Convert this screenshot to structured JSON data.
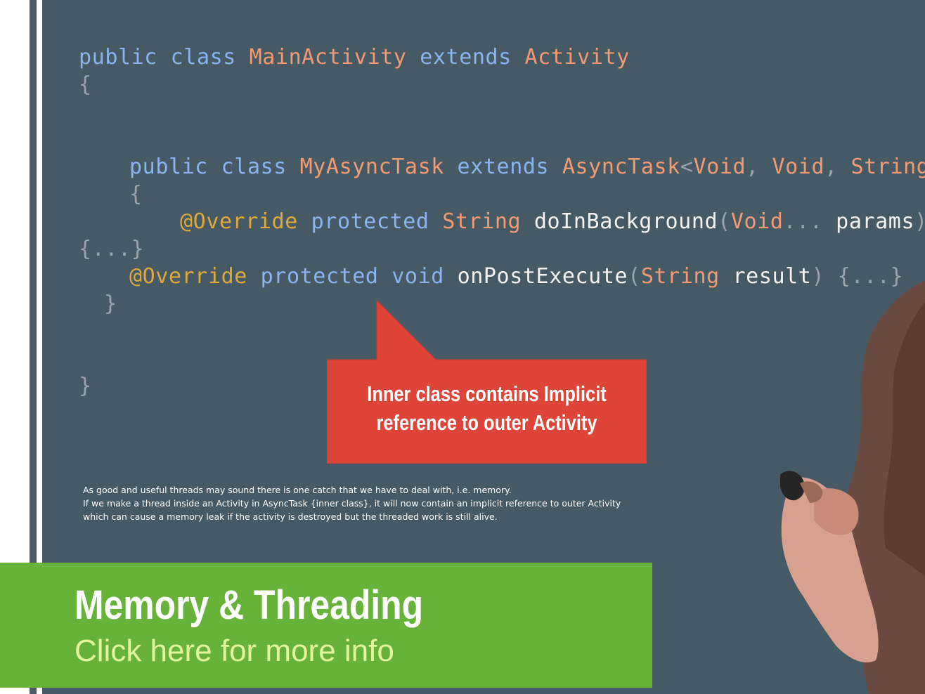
{
  "code": {
    "line1": {
      "kw": "public class ",
      "cls1": "MainActivity",
      "kw2": " extends ",
      "cls2": "Activity"
    },
    "line2": {
      "punc": "{"
    },
    "line3": {
      "kw": "public class ",
      "cls1": "MyAsyncTask",
      "kw2": " extends ",
      "cls2": "AsyncTask",
      "p1": "<",
      "c3": "Void",
      "p2": ", ",
      "c4": "Void",
      "p3": ", ",
      "c5": "String",
      "p4": ">"
    },
    "line4": {
      "punc": "{"
    },
    "line5": {
      "ann": "@Override",
      "kw": " protected ",
      "cls": "String",
      "plain": " doInBackground",
      "p1": "(",
      "cls2": "Void",
      "p2": "... ",
      "plain2": "params",
      "p3": ")"
    },
    "line6": {
      "punc": "{...}"
    },
    "line7": {
      "ann": "@Override",
      "kw": " protected void ",
      "plain": "onPostExecute",
      "p1": "(",
      "cls": "String",
      "plain2": " result",
      "p2": ") {...}"
    },
    "line8": {
      "punc": "}"
    },
    "line9": {
      "punc": "}"
    }
  },
  "callout": {
    "line1": "Inner class contains Implicit",
    "line2": "reference to outer Activity",
    "color": "#de4437"
  },
  "caption": {
    "line1": "As good and useful threads may sound there is one catch that we have to deal with, i.e. memory.",
    "line2": "If we make a thread inside an Activity in AsyncTask {inner class}, it will now contain an implicit reference to outer Activity",
    "line3": "which can cause a memory leak if the activity is destroyed but the threaded work is still alive."
  },
  "banner": {
    "title": "Memory & Threading",
    "link": "Click here for more info",
    "color": "#67b239"
  },
  "background_color": "#455a65"
}
